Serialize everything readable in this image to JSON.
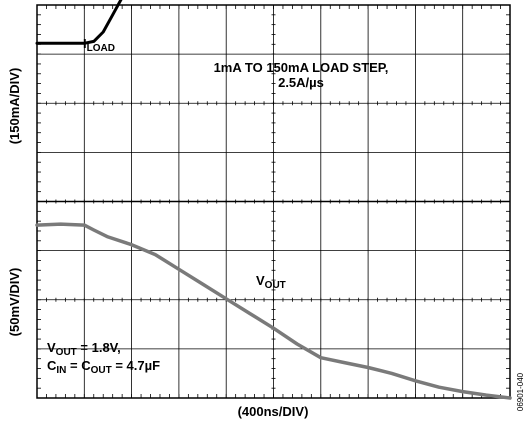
{
  "chart_data": {
    "type": "line",
    "title": "",
    "xlabel": "(400ns/DIV)",
    "ylabel_top": "(150mA/DIV)",
    "ylabel_bottom": "(50mV/DIV)",
    "grid": true,
    "divisions": {
      "x": 10,
      "y": 8
    },
    "annotations": {
      "load_step_line1": "1mA TO 150mA LOAD STEP,",
      "load_step_line2": "2.5A/µs",
      "conditions_line1_main": "V",
      "conditions_line1_sub": "OUT",
      "conditions_line1_rest": " = 1.8V,",
      "conditions_line2_a": "C",
      "conditions_line2_a_sub": "IN",
      "conditions_line2_mid": " = C",
      "conditions_line2_b_sub": "OUT",
      "conditions_line2_rest": " = 4.7µF",
      "figure_id": "06901-040"
    },
    "series": [
      {
        "name": "I_LOAD",
        "label_main": "I",
        "label_sub": "LOAD",
        "color": "#000000",
        "x_div": [
          0,
          1.0,
          1.2,
          1.4,
          1.6,
          1.8,
          2.0,
          2.2,
          2.4,
          2.6,
          2.8,
          3.0,
          3.2,
          3.5,
          4.0,
          6.0,
          8.0,
          10.0
        ],
        "y_div": [
          7.22,
          7.22,
          7.26,
          7.45,
          7.8,
          8.15,
          8.5,
          8.8,
          9.1,
          9.36,
          9.55,
          9.7,
          9.74,
          9.75,
          9.74,
          9.72,
          9.7,
          9.68
        ]
      },
      {
        "name": "V_OUT",
        "label_main": "V",
        "label_sub": "OUT",
        "color": "#7a7a7a",
        "x_div": [
          0,
          0.5,
          1.0,
          1.2,
          1.5,
          2.0,
          2.5,
          3.0,
          3.5,
          4.0,
          4.5,
          5.0,
          5.5,
          6.0,
          6.5,
          7.0,
          7.5,
          8.0,
          8.5,
          9.0,
          9.5,
          10.0
        ],
        "y_div": [
          3.52,
          3.54,
          3.52,
          3.42,
          3.28,
          3.12,
          2.92,
          2.62,
          2.32,
          2.02,
          1.72,
          1.42,
          1.1,
          0.82,
          0.72,
          0.62,
          0.5,
          0.35,
          0.22,
          0.13,
          0.06,
          0.0
        ]
      }
    ]
  }
}
